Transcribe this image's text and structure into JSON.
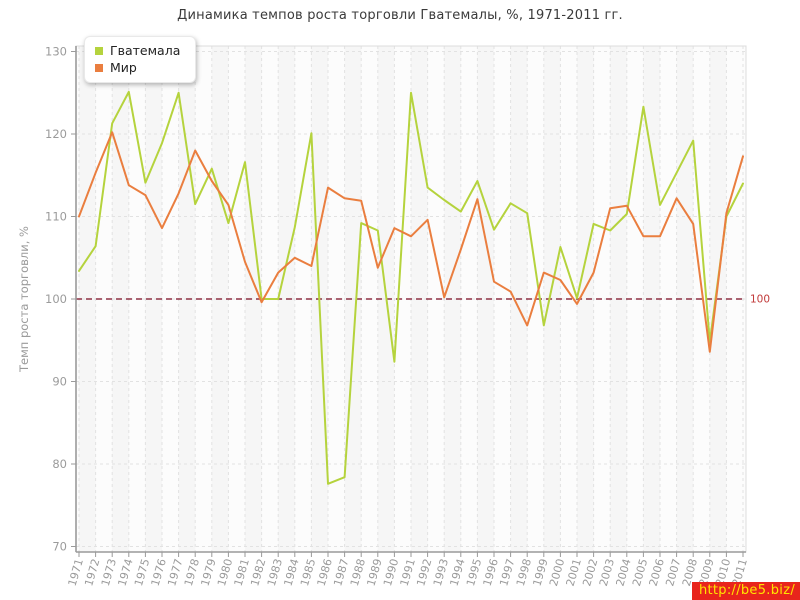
{
  "title": "Динамика темпов роста торговли Гватемалы, %, 1971-2011 гг.",
  "watermark": "http://be5.biz/",
  "y_axis": {
    "label": "Темп роста торговли, %",
    "ticks": [
      70,
      80,
      90,
      100,
      110,
      120,
      130
    ]
  },
  "reference": {
    "value": 100,
    "label": "100",
    "line_color": "#8e3044",
    "label_color": "#c23b3b"
  },
  "legend": {
    "items": [
      {
        "label": "Гватемала",
        "color": "#b5d33d"
      },
      {
        "label": "Мир",
        "color": "#ea7e3f"
      }
    ]
  },
  "chart_data": {
    "type": "line",
    "title": "Динамика темпов роста торговли Гватемалы, %, 1971-2011 гг.",
    "xlabel": "",
    "ylabel": "Темп роста торговли, %",
    "ylim": [
      70,
      130
    ],
    "y_tick_step": 10,
    "grid": true,
    "legend_position": "top-left",
    "reference_line": 100,
    "x": [
      1971,
      1972,
      1973,
      1974,
      1975,
      1976,
      1977,
      1978,
      1979,
      1980,
      1981,
      1982,
      1983,
      1984,
      1985,
      1986,
      1987,
      1988,
      1989,
      1990,
      1991,
      1992,
      1993,
      1994,
      1995,
      1996,
      1997,
      1998,
      1999,
      2000,
      2001,
      2002,
      2003,
      2004,
      2005,
      2006,
      2007,
      2008,
      2009,
      2010,
      2011
    ],
    "series": [
      {
        "name": "Гватемала",
        "color": "#b5d33d",
        "values": [
          103.4,
          106.4,
          121.3,
          125.1,
          114.1,
          118.9,
          125.0,
          111.5,
          115.8,
          109.2,
          116.6,
          100.0,
          100.0,
          108.7,
          120.1,
          77.6,
          78.4,
          109.2,
          108.3,
          92.4,
          125.0,
          113.5,
          112.0,
          110.6,
          114.3,
          108.4,
          111.6,
          110.4,
          96.8,
          106.3,
          100.1,
          109.1,
          108.3,
          110.3,
          123.3,
          111.4,
          115.3,
          119.2,
          94.8,
          110.0,
          114.0
        ]
      },
      {
        "name": "Мир",
        "color": "#ea7e3f",
        "values": [
          110.0,
          115.3,
          120.2,
          113.8,
          112.6,
          108.6,
          112.8,
          118.0,
          114.3,
          111.4,
          104.5,
          99.6,
          103.2,
          105.0,
          104.0,
          113.5,
          112.2,
          111.9,
          103.8,
          108.6,
          107.6,
          109.6,
          100.2,
          106.0,
          112.1,
          102.1,
          100.9,
          96.8,
          103.2,
          102.3,
          99.4,
          103.2,
          111.0,
          111.3,
          107.6,
          107.6,
          112.2,
          109.1,
          93.6,
          110.4,
          117.3
        ]
      }
    ]
  }
}
